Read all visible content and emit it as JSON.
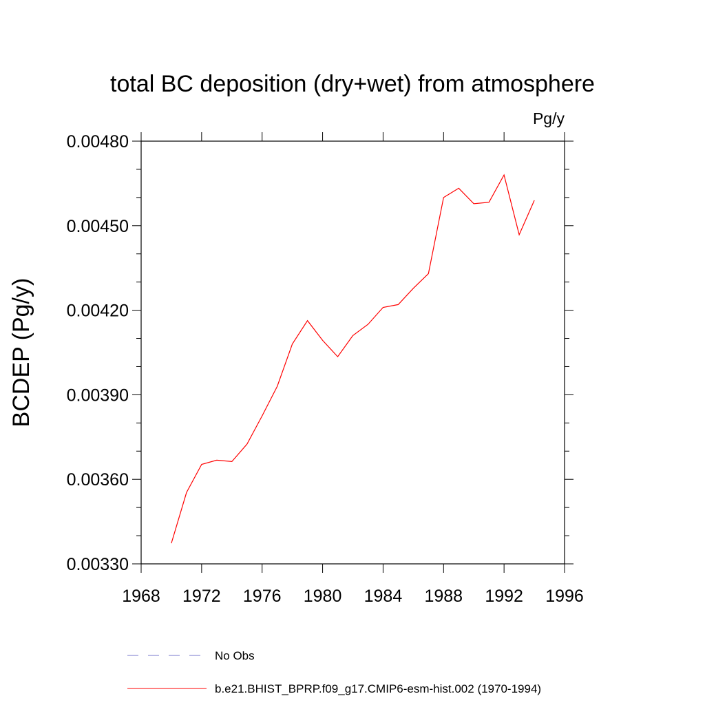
{
  "chart_data": {
    "type": "line",
    "title": "total BC deposition (dry+wet) from atmosphere",
    "units": "Pg/y",
    "ylabel": "BCDEP  (Pg/y)",
    "xlabel": "",
    "xlim": [
      1968,
      1996
    ],
    "ylim": [
      0.0033,
      0.0048
    ],
    "x_ticks": [
      1968,
      1972,
      1976,
      1980,
      1984,
      1988,
      1992,
      1996
    ],
    "x_tick_labels": [
      "1968",
      "1972",
      "1976",
      "1980",
      "1984",
      "1988",
      "1992",
      "1996"
    ],
    "y_ticks": [
      0.0033,
      0.0036,
      0.0039,
      0.0042,
      0.0045,
      0.0048
    ],
    "y_tick_labels": [
      "0.00330",
      "0.00360",
      "0.00390",
      "0.00420",
      "0.00450",
      "0.00480"
    ],
    "grid": false,
    "legend_position": "bottom",
    "series": [
      {
        "name": "b.e21.BHIST_BPRP.f09_g17.CMIP6-esm-hist.002 (1970-1994)",
        "color": "#ff0000",
        "style": "solid",
        "x": [
          1970,
          1971,
          1972,
          1973,
          1974,
          1975,
          1976,
          1977,
          1978,
          1979,
          1980,
          1981,
          1982,
          1983,
          1984,
          1985,
          1986,
          1987,
          1988,
          1989,
          1990,
          1991,
          1992,
          1993,
          1994
        ],
        "y": [
          0.003373,
          0.003553,
          0.003653,
          0.003668,
          0.003663,
          0.003725,
          0.003825,
          0.00393,
          0.00408,
          0.004163,
          0.004093,
          0.004035,
          0.00411,
          0.00415,
          0.00421,
          0.00422,
          0.004278,
          0.00433,
          0.0046,
          0.004633,
          0.004578,
          0.004583,
          0.00468,
          0.004468,
          0.00459
        ]
      }
    ],
    "legend": [
      {
        "label": "No Obs",
        "color": "#7777cc",
        "style": "dashed"
      },
      {
        "label": "b.e21.BHIST_BPRP.f09_g17.CMIP6-esm-hist.002 (1970-1994)",
        "color": "#ff0000",
        "style": "solid"
      }
    ]
  }
}
